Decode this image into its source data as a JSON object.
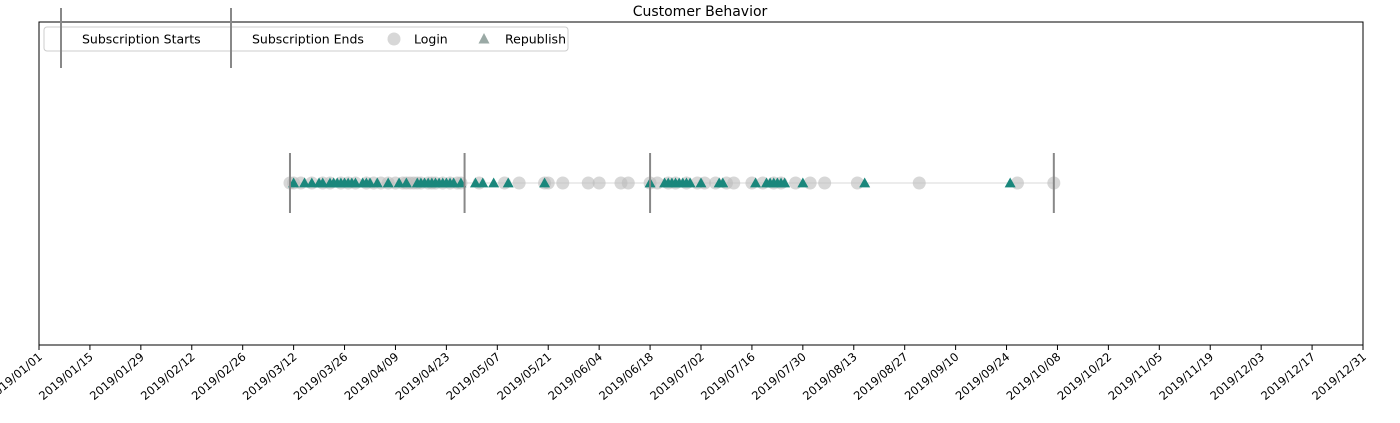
{
  "chart_data": {
    "type": "scatter",
    "title": "Customer Behavior",
    "xlabel": "",
    "ylabel": "",
    "x_axis": {
      "type": "date",
      "range": [
        "2019-01-01",
        "2019-12-31"
      ],
      "tick_labels": [
        "2019/01/01",
        "2019/01/15",
        "2019/01/29",
        "2019/02/12",
        "2019/02/26",
        "2019/03/12",
        "2019/03/26",
        "2019/04/09",
        "2019/04/23",
        "2019/05/07",
        "2019/05/21",
        "2019/06/04",
        "2019/06/18",
        "2019/07/02",
        "2019/07/16",
        "2019/07/30",
        "2019/08/13",
        "2019/08/27",
        "2019/09/10",
        "2019/09/24",
        "2019/10/08",
        "2019/10/22",
        "2019/11/05",
        "2019/11/19",
        "2019/12/03",
        "2019/12/17",
        "2019/12/31"
      ]
    },
    "y_axis": {
      "visible": false
    },
    "grid": false,
    "legend": {
      "placement": "top-left",
      "entries": [
        {
          "label": "Subscription Starts",
          "marker": "vertical-line"
        },
        {
          "label": "Subscription Ends",
          "marker": "vertical-line"
        },
        {
          "label": "Login",
          "marker": "circle"
        },
        {
          "label": "Republish",
          "marker": "triangle"
        }
      ]
    },
    "series": [
      {
        "name": "Subscription Starts",
        "marker": "vertical-line",
        "color": "#888888",
        "x": [
          "2019-03-11",
          "2019-06-18"
        ]
      },
      {
        "name": "Subscription Ends",
        "marker": "vertical-line",
        "color": "#888888",
        "x": [
          "2019-04-28",
          "2019-10-07"
        ]
      },
      {
        "name": "Login",
        "marker": "circle",
        "color": "#bdbdbd",
        "x": [
          "2019-03-11",
          "2019-03-12",
          "2019-03-14",
          "2019-03-17",
          "2019-03-20",
          "2019-03-22",
          "2019-03-25",
          "2019-03-27",
          "2019-03-29",
          "2019-04-01",
          "2019-04-03",
          "2019-04-05",
          "2019-04-07",
          "2019-04-09",
          "2019-04-11",
          "2019-04-12",
          "2019-04-13",
          "2019-04-14",
          "2019-04-15",
          "2019-04-16",
          "2019-04-18",
          "2019-04-19",
          "2019-04-20",
          "2019-04-22",
          "2019-04-24",
          "2019-04-26",
          "2019-04-27",
          "2019-05-02",
          "2019-05-09",
          "2019-05-13",
          "2019-05-20",
          "2019-05-21",
          "2019-05-25",
          "2019-06-01",
          "2019-06-04",
          "2019-06-10",
          "2019-06-12",
          "2019-06-18",
          "2019-06-20",
          "2019-06-23",
          "2019-06-25",
          "2019-06-28",
          "2019-07-01",
          "2019-07-03",
          "2019-07-06",
          "2019-07-09",
          "2019-07-11",
          "2019-07-16",
          "2019-07-19",
          "2019-07-22",
          "2019-07-24",
          "2019-07-28",
          "2019-08-01",
          "2019-08-05",
          "2019-08-14",
          "2019-08-31",
          "2019-09-27",
          "2019-10-07"
        ]
      },
      {
        "name": "Republish",
        "marker": "triangle",
        "color": "#1a877c",
        "x": [
          "2019-03-12",
          "2019-03-15",
          "2019-03-17",
          "2019-03-19",
          "2019-03-20",
          "2019-03-22",
          "2019-03-23",
          "2019-03-24",
          "2019-03-25",
          "2019-03-26",
          "2019-03-27",
          "2019-03-28",
          "2019-03-29",
          "2019-03-31",
          "2019-04-01",
          "2019-04-02",
          "2019-04-04",
          "2019-04-07",
          "2019-04-10",
          "2019-04-12",
          "2019-04-15",
          "2019-04-16",
          "2019-04-17",
          "2019-04-18",
          "2019-04-19",
          "2019-04-20",
          "2019-04-21",
          "2019-04-22",
          "2019-04-23",
          "2019-04-24",
          "2019-04-25",
          "2019-04-27",
          "2019-05-01",
          "2019-05-03",
          "2019-05-06",
          "2019-05-10",
          "2019-05-20",
          "2019-06-18",
          "2019-06-22",
          "2019-06-23",
          "2019-06-24",
          "2019-06-25",
          "2019-06-26",
          "2019-06-27",
          "2019-06-28",
          "2019-06-29",
          "2019-07-02",
          "2019-07-07",
          "2019-07-08",
          "2019-07-17",
          "2019-07-20",
          "2019-07-21",
          "2019-07-22",
          "2019-07-23",
          "2019-07-24",
          "2019-07-25",
          "2019-07-30",
          "2019-08-16",
          "2019-09-25"
        ]
      }
    ]
  }
}
